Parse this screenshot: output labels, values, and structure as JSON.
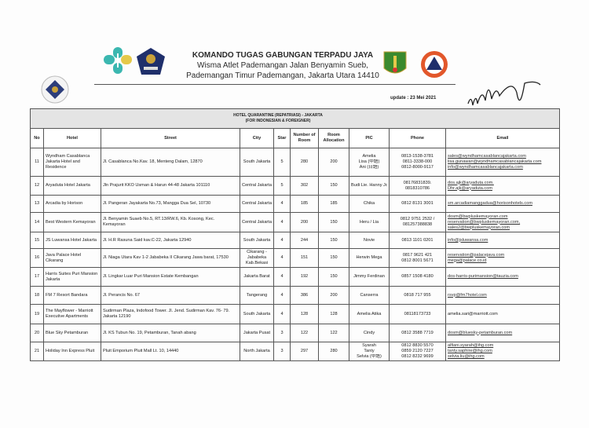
{
  "header": {
    "title": "KOMANDO TUGAS GABUNGAN TERPADU JAYA",
    "address_line1": "Wisma Atlet Pademangan Jalan Benyamin Sueb,",
    "address_line2": "Pademangan Timur Pademangan, Jakarta Utara 14410",
    "update": "update : 23 Mei 2021"
  },
  "colors": {
    "band": "#e4e4e4",
    "kemenkes_teal": "#3bb7b0",
    "kemenkes_yellow": "#e5c94a",
    "bnpb_orange": "#e2572b",
    "navy": "#1f2f6b"
  },
  "table": {
    "title_line1": "HOTEL QUARANTINE (REPATRIASI) - JAKARTA",
    "title_line2": "(FOR INDONESIAN & FOREIGNER)",
    "columns": [
      "No",
      "Hotel",
      "Street",
      "City",
      "Star",
      "Number of Room",
      "Room Allocation",
      "PIC",
      "Phone",
      "Email"
    ],
    "rows": [
      {
        "no": "11",
        "hotel": "Wyndham Casablanca Jakarta Hotel and Residence",
        "street": "Jl. Casablanca No.Kav. 18, Menteng Dalam, 12870",
        "city": "South Jakarta",
        "star": "5",
        "rooms": "280",
        "alloc": "200",
        "pic": [
          "Amelia",
          "Lisa (中語)",
          "Ani (日語)"
        ],
        "phone": [
          "0813-1538-3781",
          "0811-3338-000",
          "0812-8000-9117"
        ],
        "email": [
          "sales@wyndhamcasablancajakarta.com",
          "lisa.gunawan@wyndhamcasablancajakarta.com",
          "info@wyndhamcasablancajakarta.com"
        ]
      },
      {
        "no": "12",
        "hotel": "Aryaduta Hotel Jakarta",
        "street": "Jln Prajurit KKO Usman & Harun 44-48 Jakarta 101110",
        "city": "Central Jakarta",
        "star": "5",
        "rooms": "302",
        "alloc": "150",
        "pic": [
          "Budi Lie. Hanny Joe"
        ],
        "phone": [
          "08176831839.",
          "0818310786"
        ],
        "email": [
          "dos.ajk@aryaduta.com.",
          "Dhr.ajk@aryaduta.com"
        ]
      },
      {
        "no": "13",
        "hotel": "Arcadia by Horison",
        "street": "Jl. Pangeran Jayakarta No.73, Mangga Dua Sel, 10730",
        "city": "Central Jakarta",
        "star": "4",
        "rooms": "185",
        "alloc": "185",
        "pic": [
          "Chika"
        ],
        "phone": [
          "0812 8131 3001"
        ],
        "email": [
          "sm.arcadiamanggadua@horisonhotels.com"
        ]
      },
      {
        "no": "14",
        "hotel": "Best Western Kemayoran",
        "street": "Jl. Benyamin Suaeb No.5, RT.13/RW.6, Kb. Kosong, Kec. Kemayoran",
        "city": "Central Jakarta",
        "star": "4",
        "rooms": "200",
        "alloc": "150",
        "pic": [
          "Heru / Lia"
        ],
        "phone": [
          "0812 9751 2532 /",
          "081257388838"
        ],
        "email": [
          "dosm@bwpluskemayoran.com",
          "reservation@bwpluskemayoran.com,",
          "sales2@bwpluskemayoran.com"
        ]
      },
      {
        "no": "15",
        "hotel": "JS Luwansa Hotel Jakarta",
        "street": "Jl. H.R Rasuna Said kav.C-22, Jakarta 12940",
        "city": "South Jakarta",
        "star": "4",
        "rooms": "244",
        "alloc": "150",
        "pic": [
          "Novie"
        ],
        "phone": [
          "0813 1101 0201"
        ],
        "email": [
          "info@jsluwansa.com"
        ]
      },
      {
        "no": "16",
        "hotel": "Java Palace Hotel Cikarang",
        "street": "Jl. Niaga Utara Kav 1-2 Jababeka II Cikarang Jawa barat, 17530",
        "city": "Cikarang - Jababeka Kab.Bekasi",
        "star": "4",
        "rooms": "151",
        "alloc": "150",
        "pic": [
          "Herwin    Mega"
        ],
        "phone": [
          "0817 9621 421",
          "0812 8001 5671"
        ],
        "email": [
          "reservation@palacejava.com",
          "mega@palace.co.id"
        ]
      },
      {
        "no": "17",
        "hotel": "Harris Suites Puri Mansion Jakarta",
        "street": "Jl. Lingkar Luar Puri Mansion Estate Kembangan",
        "city": "Jakarta Barat",
        "star": "4",
        "rooms": "192",
        "alloc": "150",
        "pic": [
          "Jimmy Ferdinan"
        ],
        "phone": [
          "0857 1508 4180"
        ],
        "email": [
          "dos-harris-purimansion@tauzia.com"
        ]
      },
      {
        "no": "18",
        "hotel": "FM 7 Resort Bandara",
        "street": "Jl. Perancis No. 67",
        "city": "Tangerang",
        "star": "4",
        "rooms": "386",
        "alloc": "200",
        "pic": [
          "Canserra"
        ],
        "phone": [
          "0818 717 955"
        ],
        "email": [
          "rsvp@fm7hotel.com"
        ]
      },
      {
        "no": "19",
        "hotel": "The Mayflower - Marriott Executive Apartments",
        "street": "Sudirman Plaza, Indofood Tower.   Jl. Jend. Sudirman Kav. 76- 79. Jakarta 12190",
        "city": "South Jakarta",
        "star": "4",
        "rooms": "128",
        "alloc": "128",
        "pic": [
          "Amelia Atika"
        ],
        "phone": [
          "08118173733"
        ],
        "email": [
          "amelia.sari@marriott.com"
        ]
      },
      {
        "no": "20",
        "hotel": "Blue Sky Petamburan",
        "street": "Jl. KS Tubun No. 19, Petamburan, Tanah abang",
        "city": "Jakarta Pusat",
        "star": "3",
        "rooms": "122",
        "alloc": "122",
        "pic": [
          "Cindy"
        ],
        "phone": [
          "0812 3588 7719"
        ],
        "email": [
          "dosm@bluesky-petamburan.com"
        ]
      },
      {
        "no": "21",
        "hotel": "Holiday Inn Express Pluit",
        "street": "Pluit Emporium Pluit Mall Lt. 10, 14440",
        "city": "North Jakarta",
        "star": "3",
        "rooms": "297",
        "alloc": "280",
        "pic": [
          "Syarah",
          "Tanty",
          "Selvia (中語)"
        ],
        "phone": [
          "0812 8830 5570",
          "0859 2120 7227",
          "0812 8232 9699"
        ],
        "email": [
          "alfiani.syarah@ihg.com",
          "tanty.saphire@ihg.com",
          "selvia.liu@ihg.com"
        ]
      }
    ]
  }
}
